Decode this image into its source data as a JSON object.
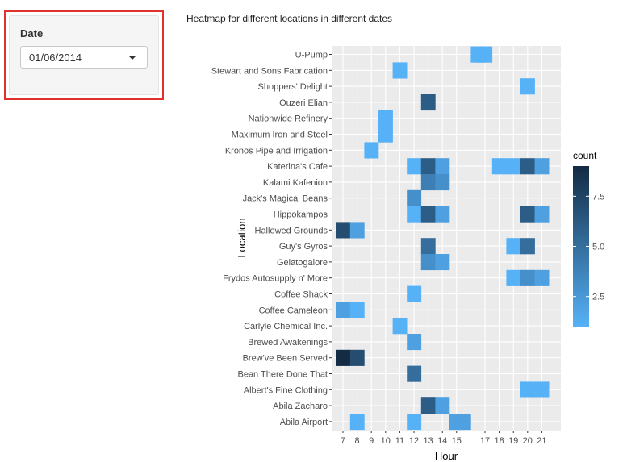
{
  "sidebar": {
    "date_label": "Date",
    "date_value": "01/06/2014"
  },
  "chart_data": {
    "type": "heatmap",
    "title": "Heatmap for different locations in different dates",
    "xlabel": "Hour",
    "ylabel": "Location",
    "x_ticks": [
      "7",
      "8",
      "9",
      "10",
      "11",
      "12",
      "13",
      "14",
      "15",
      "17",
      "18",
      "19",
      "20",
      "21"
    ],
    "y_categories": [
      "U-Pump",
      "Stewart and Sons Fabrication",
      "Shoppers' Delight",
      "Ouzeri Elian",
      "Nationwide Refinery",
      "Maximum Iron and Steel",
      "Kronos Pipe and Irrigation",
      "Katerina's Cafe",
      "Kalami Kafenion",
      "Jack's Magical Beans",
      "Hippokampos",
      "Hallowed Grounds",
      "Guy's Gyros",
      "Gelatogalore",
      "Frydos Autosupply n' More",
      "Coffee Shack",
      "Coffee Cameleon",
      "Carlyle Chemical Inc.",
      "Brewed Awakenings",
      "Brew've Been Served",
      "Bean There Done That",
      "Albert's Fine Clothing",
      "Abila Zacharo",
      "Abila Airport"
    ],
    "legend": {
      "title": "count",
      "ticks": [
        "2.5",
        "5.0",
        "7.5"
      ],
      "min": 1,
      "max": 9,
      "low_color": "#56B1F7",
      "high_color": "#132B43",
      "position": "right"
    },
    "cells": [
      {
        "location": "U-Pump",
        "hour": 16.5,
        "count": 1
      },
      {
        "location": "U-Pump",
        "hour": 17,
        "count": 1
      },
      {
        "location": "Stewart and Sons Fabrication",
        "hour": 11,
        "count": 1
      },
      {
        "location": "Shoppers' Delight",
        "hour": 20,
        "count": 1
      },
      {
        "location": "Ouzeri Elian",
        "hour": 13,
        "count": 6
      },
      {
        "location": "Nationwide Refinery",
        "hour": 10,
        "count": 1
      },
      {
        "location": "Maximum Iron and Steel",
        "hour": 10,
        "count": 1
      },
      {
        "location": "Kronos Pipe and Irrigation",
        "hour": 9,
        "count": 1
      },
      {
        "location": "Katerina's Cafe",
        "hour": 12,
        "count": 1
      },
      {
        "location": "Katerina's Cafe",
        "hour": 13,
        "count": 6
      },
      {
        "location": "Katerina's Cafe",
        "hour": 14,
        "count": 2
      },
      {
        "location": "Katerina's Cafe",
        "hour": 18,
        "count": 1
      },
      {
        "location": "Katerina's Cafe",
        "hour": 19,
        "count": 1
      },
      {
        "location": "Katerina's Cafe",
        "hour": 20,
        "count": 6
      },
      {
        "location": "Katerina's Cafe",
        "hour": 21,
        "count": 2
      },
      {
        "location": "Kalami Kafenion",
        "hour": 13,
        "count": 4
      },
      {
        "location": "Kalami Kafenion",
        "hour": 14,
        "count": 3
      },
      {
        "location": "Jack's Magical Beans",
        "hour": 12,
        "count": 3
      },
      {
        "location": "Hippokampos",
        "hour": 12,
        "count": 1
      },
      {
        "location": "Hippokampos",
        "hour": 13,
        "count": 6
      },
      {
        "location": "Hippokampos",
        "hour": 14,
        "count": 2
      },
      {
        "location": "Hippokampos",
        "hour": 20,
        "count": 6
      },
      {
        "location": "Hippokampos",
        "hour": 21,
        "count": 2
      },
      {
        "location": "Hallowed Grounds",
        "hour": 7,
        "count": 7
      },
      {
        "location": "Hallowed Grounds",
        "hour": 8,
        "count": 2
      },
      {
        "location": "Guy's Gyros",
        "hour": 13,
        "count": 5
      },
      {
        "location": "Guy's Gyros",
        "hour": 19,
        "count": 1
      },
      {
        "location": "Guy's Gyros",
        "hour": 20,
        "count": 5
      },
      {
        "location": "Gelatogalore",
        "hour": 13,
        "count": 3
      },
      {
        "location": "Gelatogalore",
        "hour": 14,
        "count": 2
      },
      {
        "location": "Frydos Autosupply n' More",
        "hour": 19,
        "count": 1
      },
      {
        "location": "Frydos Autosupply n' More",
        "hour": 20,
        "count": 3
      },
      {
        "location": "Frydos Autosupply n' More",
        "hour": 21,
        "count": 2
      },
      {
        "location": "Coffee Shack",
        "hour": 12,
        "count": 1
      },
      {
        "location": "Coffee Cameleon",
        "hour": 7,
        "count": 2
      },
      {
        "location": "Coffee Cameleon",
        "hour": 8,
        "count": 1
      },
      {
        "location": "Carlyle Chemical Inc.",
        "hour": 11,
        "count": 1
      },
      {
        "location": "Brewed Awakenings",
        "hour": 12,
        "count": 2
      },
      {
        "location": "Brew've Been Served",
        "hour": 7,
        "count": 9
      },
      {
        "location": "Brew've Been Served",
        "hour": 8,
        "count": 7
      },
      {
        "location": "Bean There Done That",
        "hour": 12,
        "count": 5
      },
      {
        "location": "Albert's Fine Clothing",
        "hour": 20,
        "count": 1
      },
      {
        "location": "Albert's Fine Clothing",
        "hour": 21,
        "count": 1
      },
      {
        "location": "Abila Zacharo",
        "hour": 13,
        "count": 6
      },
      {
        "location": "Abila Zacharo",
        "hour": 14,
        "count": 2
      },
      {
        "location": "Abila Airport",
        "hour": 8,
        "count": 1
      },
      {
        "location": "Abila Airport",
        "hour": 12,
        "count": 1
      },
      {
        "location": "Abila Airport",
        "hour": 15,
        "count": 2
      },
      {
        "location": "Abila Airport",
        "hour": 15.5,
        "count": 2
      }
    ]
  }
}
